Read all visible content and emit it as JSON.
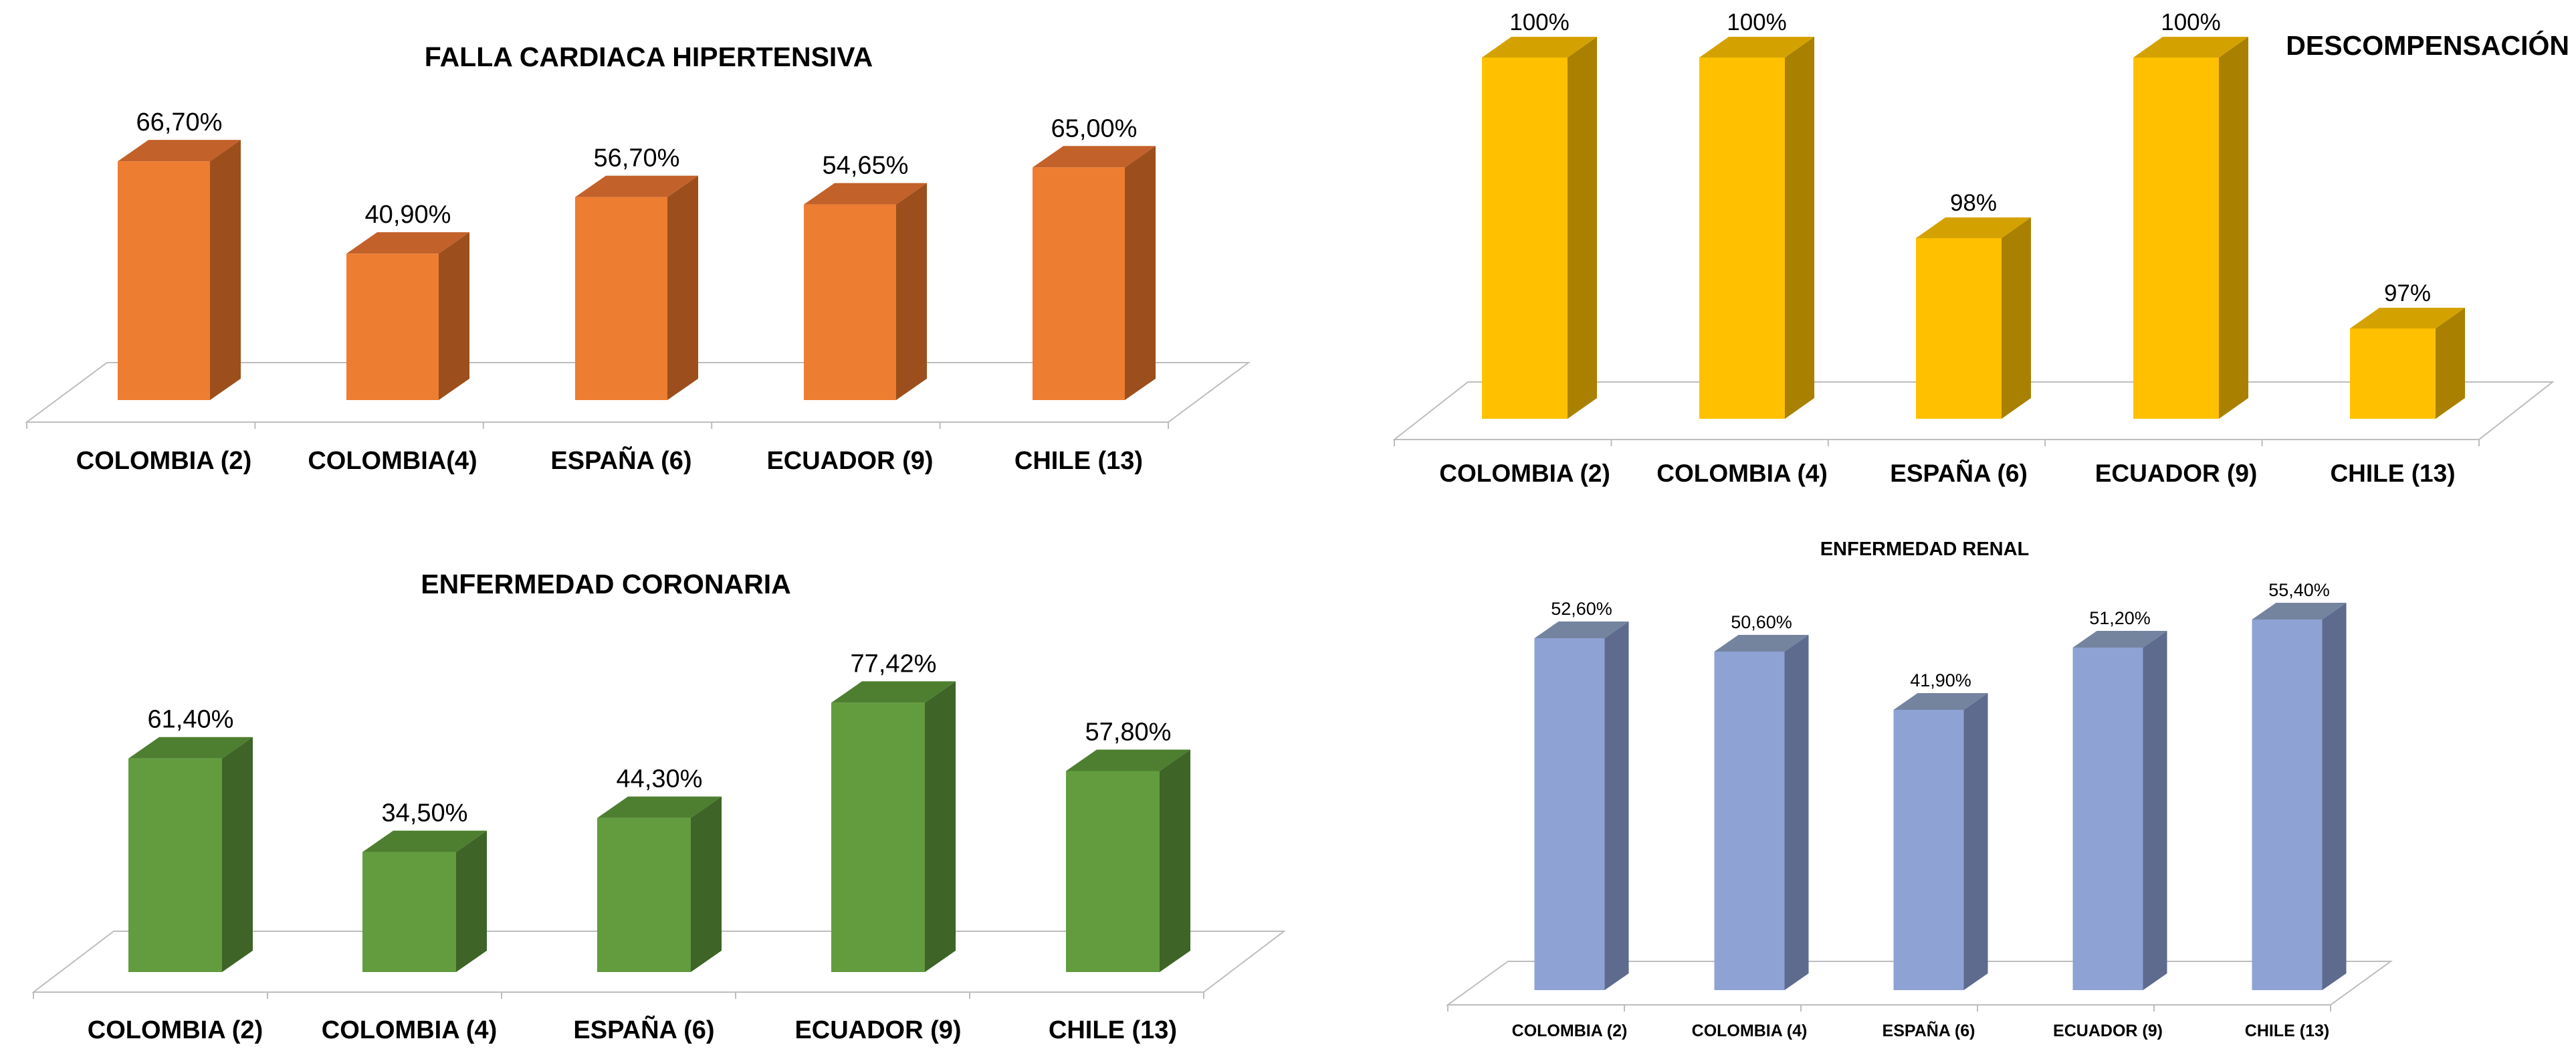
{
  "chart_data": [
    {
      "type": "bar",
      "title": "FALLA CARDIACA HIPERTENSIVA",
      "categories": [
        "COLOMBIA (2)",
        "COLOMBIA(4)",
        "ESPAÑA (6)",
        "ECUADOR (9)",
        "CHILE (13)"
      ],
      "values": [
        66.7,
        40.9,
        56.7,
        54.65,
        65.0
      ],
      "data_labels": [
        "66,70%",
        "40,90%",
        "56,70%",
        "54,65%",
        "65,00%"
      ],
      "ylim": [
        0,
        100
      ],
      "grid": false,
      "colors": {
        "front": "#ED7D31",
        "side": "#9C4F1C",
        "top": "#C3612A"
      }
    },
    {
      "type": "bar",
      "title": "DESCOMPENSACIÓN",
      "categories": [
        "COLOMBIA (2)",
        "COLOMBIA (4)",
        "ESPAÑA (6)",
        "ECUADOR (9)",
        "CHILE (13)"
      ],
      "values": [
        100,
        100,
        98,
        100,
        97
      ],
      "data_labels": [
        "100%",
        "100%",
        "98%",
        "100%",
        "97%"
      ],
      "ylim": [
        96,
        100
      ],
      "grid": false,
      "colors": {
        "front": "#FFC000",
        "side": "#A98000",
        "top": "#D4A200"
      }
    },
    {
      "type": "bar",
      "title": "ENFERMEDAD CORONARIA",
      "categories": [
        "COLOMBIA (2)",
        "COLOMBIA (4)",
        "ESPAÑA (6)",
        "ECUADOR (9)",
        "CHILE (13)"
      ],
      "values": [
        61.4,
        34.5,
        44.3,
        77.42,
        57.8
      ],
      "data_labels": [
        "61,40%",
        "34,50%",
        "44,30%",
        "77,42%",
        "57,80%"
      ],
      "ylim": [
        0,
        100
      ],
      "grid": false,
      "colors": {
        "front": "#629C3E",
        "side": "#3E6427",
        "top": "#4E7F31"
      }
    },
    {
      "type": "bar",
      "title": "ENFERMEDAD RENAL",
      "categories": [
        "COLOMBIA (2)",
        "COLOMBIA (4)",
        "ESPAÑA (6)",
        "ECUADOR (9)",
        "CHILE (13)"
      ],
      "values": [
        52.6,
        50.6,
        41.9,
        51.2,
        55.4
      ],
      "data_labels": [
        "52,60%",
        "50,60%",
        "41,90%",
        "51,20%",
        "55,40%"
      ],
      "ylim": [
        0,
        60
      ],
      "grid": false,
      "colors": {
        "front": "#8FA2D4",
        "side": "#5E6B8E",
        "top": "#74849F"
      }
    }
  ]
}
